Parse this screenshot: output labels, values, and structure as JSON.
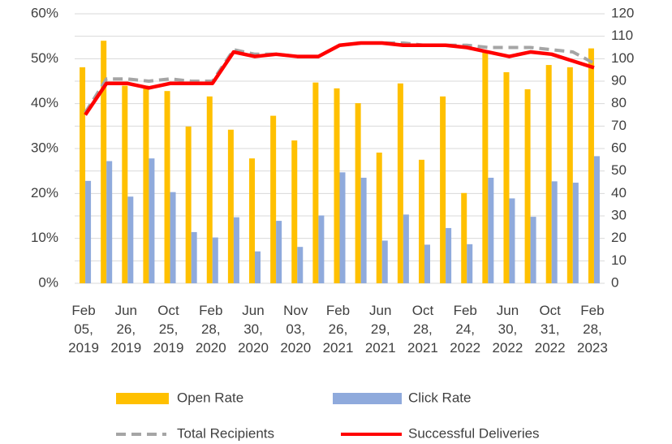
{
  "chart_data": {
    "type": "bar_line",
    "categories": [
      "Feb 05, 2019",
      null,
      "Jun 26, 2019",
      null,
      "Oct 25, 2019",
      null,
      "Feb 28, 2020",
      null,
      "Jun 30, 2020",
      null,
      "Nov 03, 2020",
      null,
      "Feb 26, 2021",
      null,
      "Jun 29, 2021",
      null,
      "Oct 28, 2021",
      null,
      "Feb 24, 2022",
      null,
      "Jun 30, 2022",
      null,
      "Oct 31, 2022",
      null,
      "Feb 28, 2023"
    ],
    "series": [
      {
        "name": "Open Rate",
        "type": "bar",
        "color": "#FFC000",
        "values": [
          48.1,
          54,
          44,
          44,
          42.8,
          34.9,
          41.6,
          34.2,
          27.8,
          37.3,
          31.8,
          44.7,
          43.4,
          40.1,
          29.1,
          44.5,
          27.5,
          41.6,
          20.1,
          51.5,
          47,
          43.2,
          48.6,
          48.1,
          52.3
        ]
      },
      {
        "name": "Click Rate",
        "type": "bar",
        "color": "#8FAADC",
        "values": [
          22.8,
          27.2,
          19.3,
          27.8,
          20.3,
          11.4,
          10.2,
          14.7,
          7.1,
          13.9,
          8.1,
          15.1,
          24.7,
          23.5,
          9.5,
          15.3,
          8.6,
          12.3,
          8.7,
          23.5,
          18.9,
          14.8,
          22.7,
          22.4,
          28.3
        ]
      },
      {
        "name": "Total Recipients",
        "type": "line",
        "dashed": true,
        "axis": "y2",
        "color": "#A5A5A5",
        "values": [
          76,
          91,
          91,
          90,
          91,
          90,
          90,
          104,
          102,
          102,
          101,
          101,
          106,
          107,
          107,
          107,
          106,
          106,
          106,
          105,
          105,
          105,
          104,
          103,
          98
        ]
      },
      {
        "name": "Successful Deliveries",
        "type": "line",
        "axis": "y2",
        "color": "#FF0000",
        "values": [
          75,
          89,
          89,
          87,
          89,
          89,
          89,
          103,
          101,
          102,
          101,
          101,
          106,
          107,
          107,
          106,
          106,
          106,
          105,
          103,
          101,
          103,
          102,
          99,
          96
        ]
      }
    ],
    "ylim": [
      0,
      60
    ],
    "yticks": [
      {
        "value": 0,
        "label": "0%"
      },
      {
        "value": 10,
        "label": "10%"
      },
      {
        "value": 20,
        "label": "20%"
      },
      {
        "value": 30,
        "label": "30%"
      },
      {
        "value": 40,
        "label": "40%"
      },
      {
        "value": 50,
        "label": "50%"
      },
      {
        "value": 60,
        "label": "60%"
      }
    ],
    "y2lim": [
      0,
      120
    ],
    "y2ticks": [
      0,
      10,
      20,
      30,
      40,
      50,
      60,
      70,
      80,
      90,
      100,
      110,
      120
    ],
    "grid": true,
    "legend": "bottom"
  }
}
